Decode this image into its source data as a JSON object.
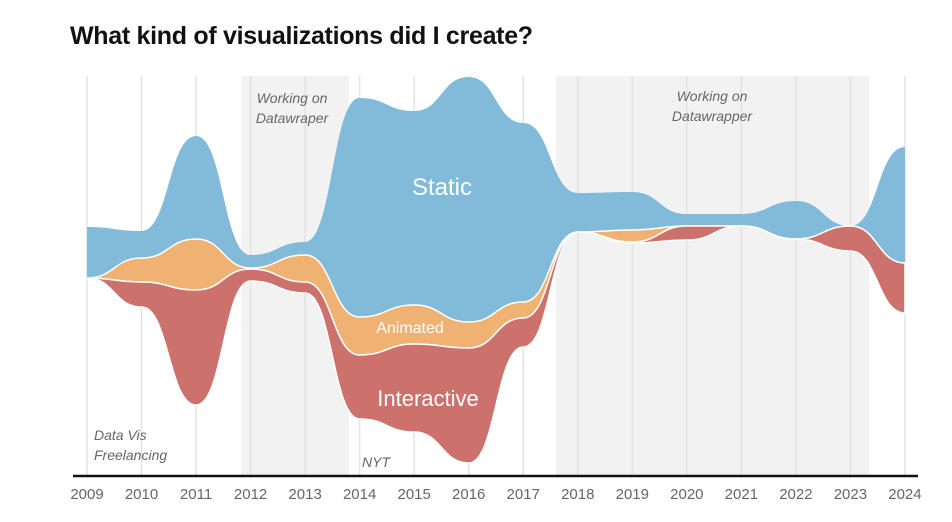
{
  "chart_data": {
    "type": "area",
    "subtype": "streamgraph",
    "title": "What kind of visualizations did I create?",
    "x": [
      "2009",
      "2010",
      "2011",
      "2012",
      "2013",
      "2014",
      "2015",
      "2016",
      "2017",
      "2018",
      "2019",
      "2020",
      "2021",
      "2022",
      "2023",
      "2024"
    ],
    "series": [
      {
        "name": "Static",
        "color": "#82bbd9",
        "values": [
          10.2,
          5.4,
          20.6,
          2.6,
          2.6,
          43.8,
          38.8,
          49.0,
          35.8,
          7.8,
          7.6,
          2.4,
          2.4,
          7.6,
          0,
          23.2
        ]
      },
      {
        "name": "Animated",
        "color": "#f0b272",
        "values": [
          0,
          4.8,
          10.2,
          0.2,
          5.4,
          7.6,
          7.8,
          5.2,
          3.2,
          0,
          2.4,
          0,
          0,
          0,
          0,
          0
        ]
      },
      {
        "name": "Interactive",
        "color": "#cc716b",
        "values": [
          0,
          5.0,
          23.0,
          2.4,
          2.2,
          12.8,
          17.6,
          23.0,
          5.8,
          0,
          0.2,
          2.8,
          0,
          0,
          5.0,
          10.0
        ]
      }
    ],
    "y_axis": "none",
    "grid": "vertical",
    "legend": "labels inside streams",
    "shaded_periods": [
      {
        "label": "Working on Datawraper",
        "from": 2011.83,
        "to": 2013.8
      },
      {
        "label": "Working on Datawrapper",
        "from": 2017.6,
        "to": 2023.35
      }
    ],
    "annotations": [
      {
        "line1": "Data Vis",
        "line2": "Freelancing"
      },
      {
        "line1": "NYT"
      }
    ]
  }
}
